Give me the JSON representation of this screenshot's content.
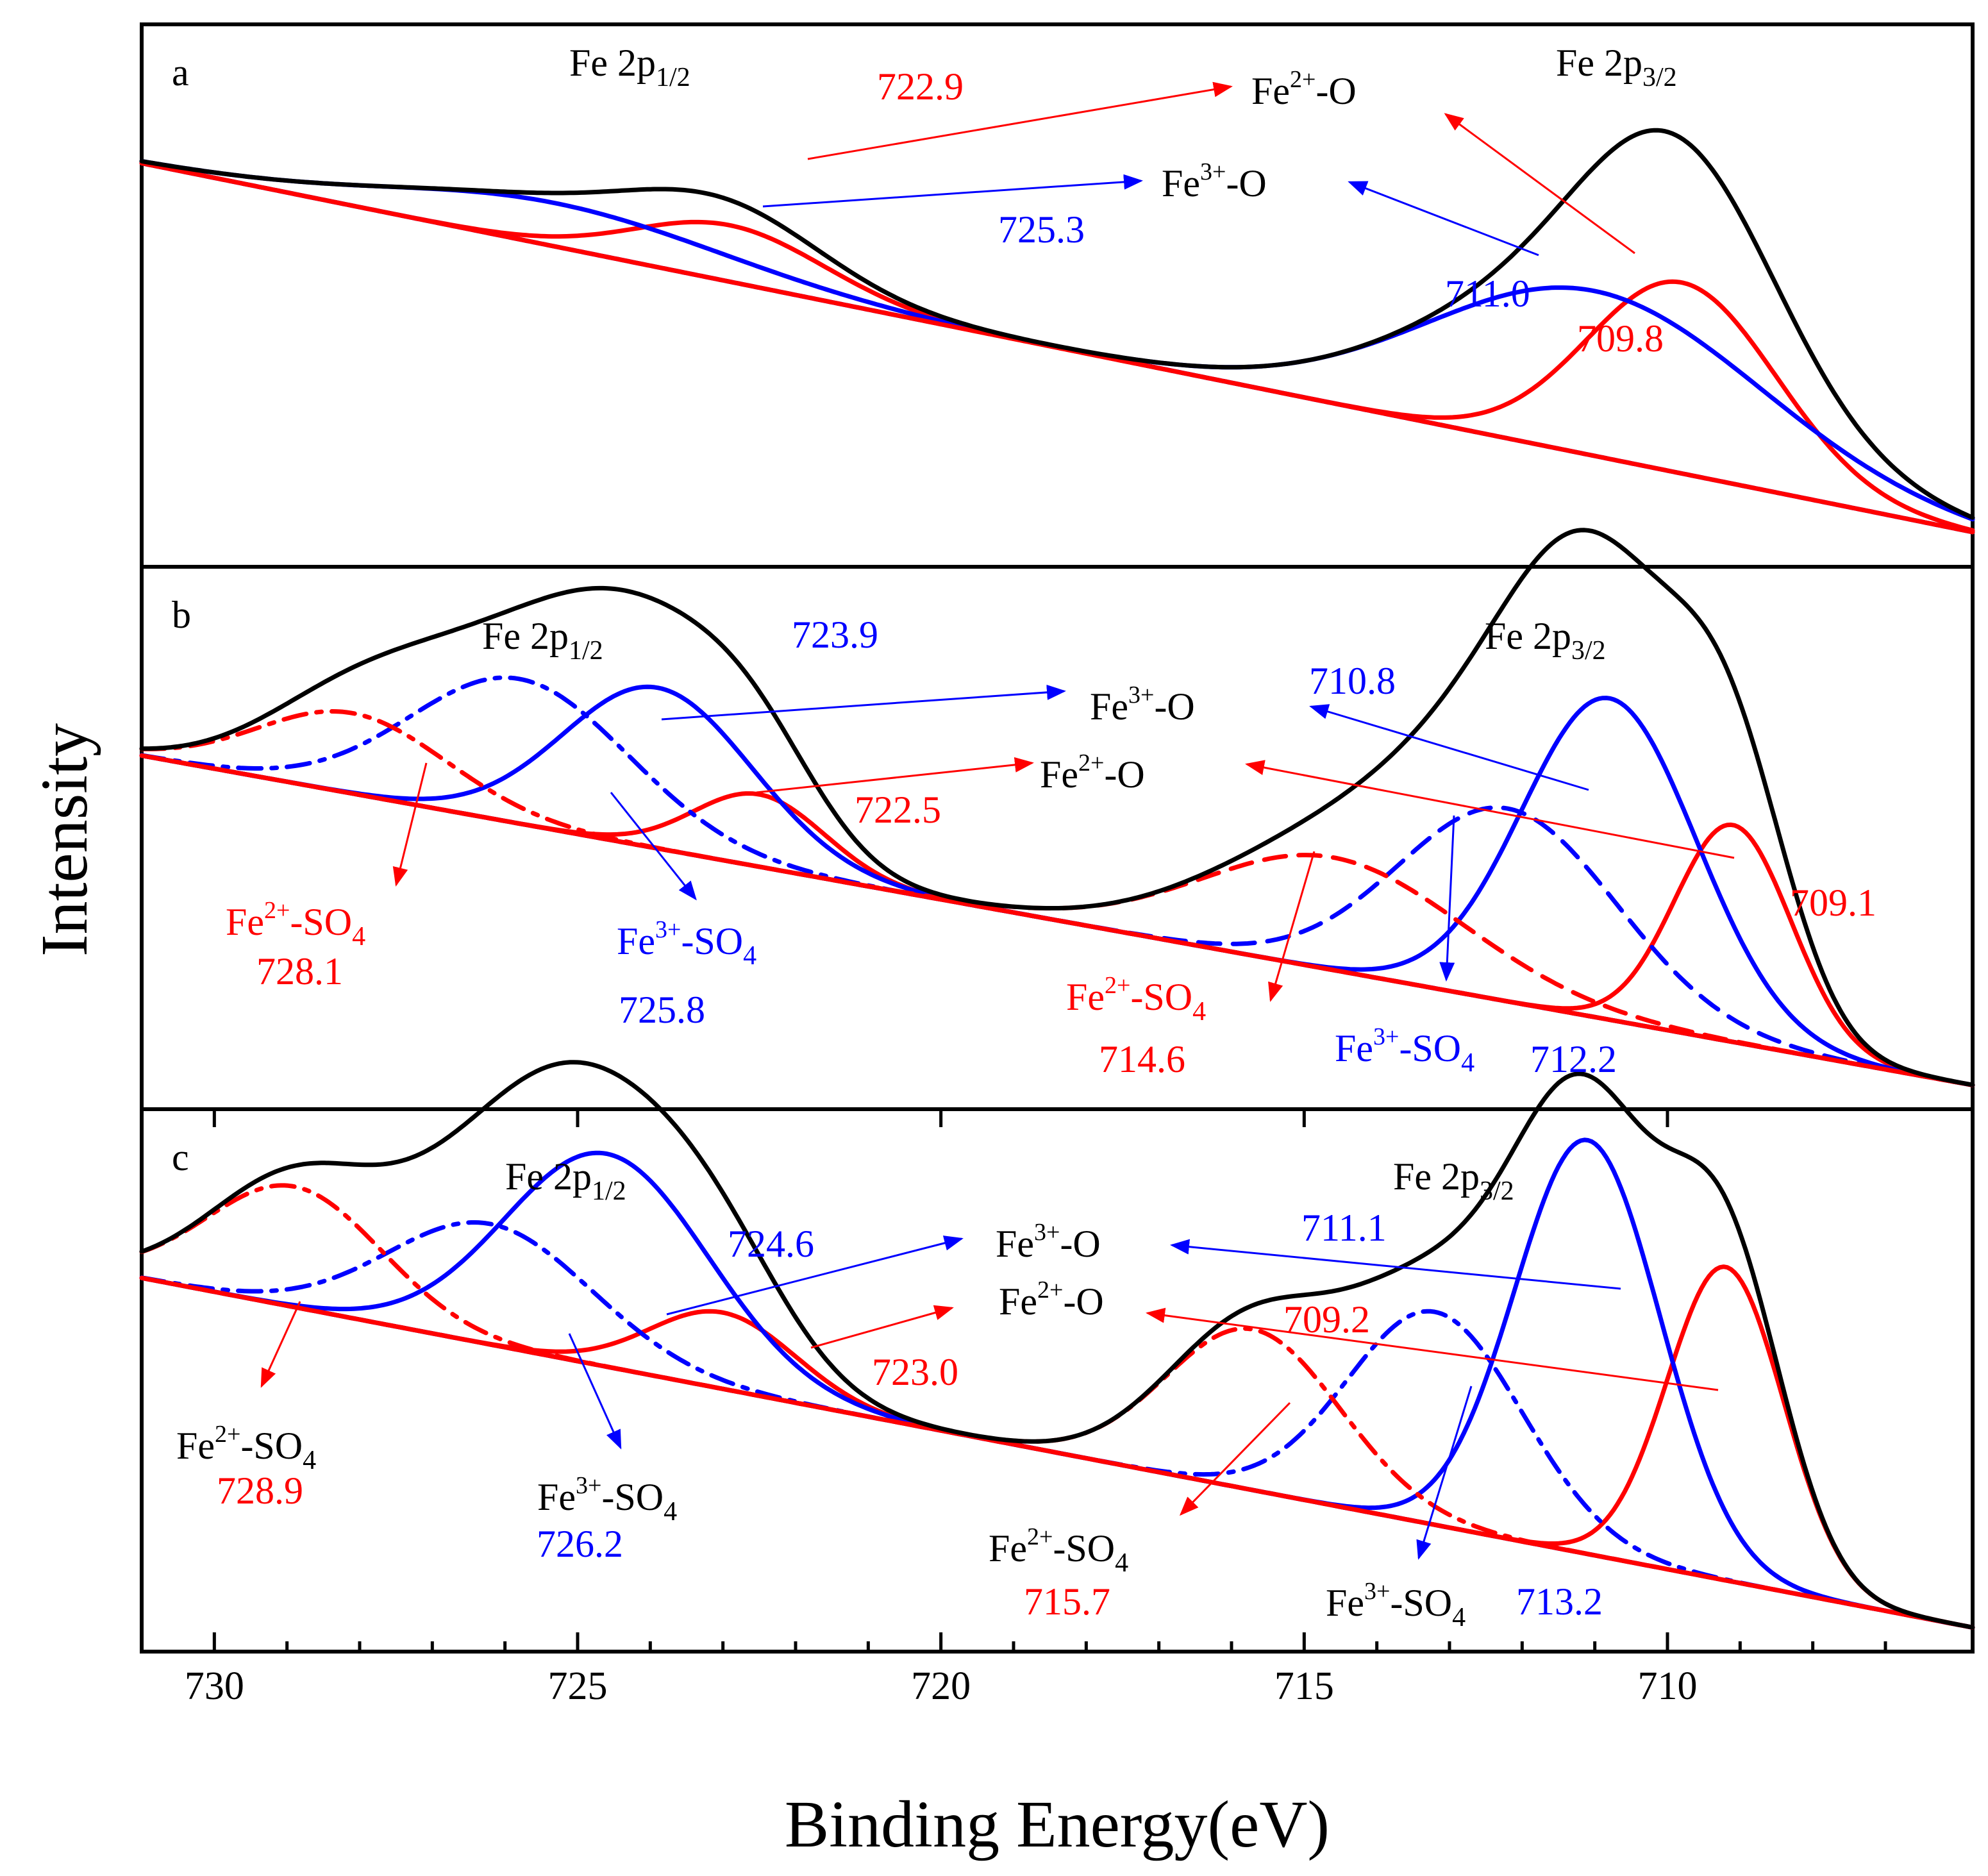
{
  "chart_data": {
    "type": "line",
    "title": "",
    "xlabel": "Binding Energy(eV)",
    "ylabel": "Intensity",
    "xlim": [
      731.0,
      705.8
    ],
    "x_reversed": true,
    "xticks": [
      730,
      725,
      720,
      715,
      710
    ],
    "xtick_labels": [
      "730",
      "725",
      "720",
      "715",
      "710"
    ],
    "colors": {
      "envelope": "#000000",
      "fe2": "#ff0000",
      "fe3": "#0000ff",
      "background": "#ff0000"
    },
    "panels": [
      {
        "letter": "a",
        "ymax": 1.25,
        "background": {
          "start": 0.93,
          "end": 0.08
        },
        "peaks": [
          {
            "center": 709.8,
            "height": 0.44,
            "width": 1.3,
            "color": "red",
            "dash": "solid",
            "species": "Fe2+-O",
            "label": "709.8"
          },
          {
            "center": 722.9,
            "height": 0.13,
            "width": 1.3,
            "color": "red",
            "dash": "solid",
            "species": "Fe2+-O",
            "label": "722.9"
          },
          {
            "center": 711.0,
            "height": 0.38,
            "width": 2.3,
            "color": "blue",
            "dash": "solid",
            "species": "Fe3+-O",
            "label": "711.0"
          },
          {
            "center": 725.3,
            "height": 0.1,
            "width": 2.3,
            "color": "blue",
            "dash": "solid",
            "species": "Fe3+-O",
            "label": "725.3"
          }
        ],
        "texts": [
          {
            "base": "Fe 2p",
            "sub": "1/2",
            "color": "black"
          },
          {
            "base": "Fe 2p",
            "sub": "3/2",
            "color": "black"
          },
          {
            "value": "722.9",
            "color": "red"
          },
          {
            "base": "Fe",
            "sup": "2+",
            "tail": "-O",
            "color": "black"
          },
          {
            "base": "Fe",
            "sup": "3+",
            "tail": "-O",
            "color": "black"
          },
          {
            "value": "725.3",
            "color": "blue"
          },
          {
            "value": "711.0",
            "color": "blue"
          },
          {
            "value": "709.8",
            "color": "red"
          }
        ]
      },
      {
        "letter": "b",
        "ymax": 1.35,
        "background": {
          "start": 0.88,
          "end": 0.06
        },
        "peaks": [
          {
            "center": 709.1,
            "height": 0.54,
            "width": 0.8,
            "color": "red",
            "dash": "solid",
            "species": "Fe2+-O",
            "label": "709.1"
          },
          {
            "center": 722.5,
            "height": 0.18,
            "width": 0.9,
            "color": "red",
            "dash": "solid",
            "species": "Fe2+-O",
            "label": "722.5"
          },
          {
            "center": 710.8,
            "height": 0.8,
            "width": 1.2,
            "color": "blue",
            "dash": "solid",
            "species": "Fe3+-O",
            "label": "710.8"
          },
          {
            "center": 723.9,
            "height": 0.4,
            "width": 1.3,
            "color": "blue",
            "dash": "solid",
            "species": "Fe3+-O",
            "label": "723.9"
          },
          {
            "center": 712.2,
            "height": 0.48,
            "width": 1.5,
            "color": "blue",
            "dash": "dash",
            "species": "Fe3+-SO4",
            "label": "712.2"
          },
          {
            "center": 725.8,
            "height": 0.36,
            "width": 1.5,
            "color": "blue",
            "dash": "dashdot",
            "species": "Fe3+-SO4",
            "label": "725.8"
          },
          {
            "center": 714.6,
            "height": 0.28,
            "width": 1.8,
            "color": "red",
            "dash": "dash",
            "species": "Fe2+-SO4",
            "label": "714.6"
          },
          {
            "center": 728.1,
            "height": 0.2,
            "width": 1.3,
            "color": "red",
            "dash": "dashdot",
            "species": "Fe2+-SO4",
            "label": "728.1"
          }
        ],
        "texts": [
          {
            "base": "Fe 2p",
            "sub": "1/2",
            "color": "black"
          },
          {
            "base": "Fe 2p",
            "sub": "3/2",
            "color": "black"
          },
          {
            "value": "723.9",
            "color": "blue"
          },
          {
            "base": "Fe",
            "sup": "3+",
            "tail": "-O",
            "color": "black"
          },
          {
            "value": "710.8",
            "color": "blue"
          },
          {
            "base": "Fe",
            "sup": "2+",
            "tail": "-O",
            "color": "black"
          },
          {
            "value": "722.5",
            "color": "red"
          },
          {
            "value": "709.1",
            "color": "red"
          },
          {
            "base": "Fe",
            "sup": "2+",
            "tail": "-SO",
            "tailsub": "4",
            "color": "red"
          },
          {
            "value": "728.1",
            "color": "red"
          },
          {
            "base": "Fe",
            "sup": "3+",
            "tail": "-SO",
            "tailsub": "4",
            "color": "blue"
          },
          {
            "value": "725.8",
            "color": "blue"
          },
          {
            "base": "Fe",
            "sup": "2+",
            "tail": "-SO",
            "tailsub": "4",
            "color": "red"
          },
          {
            "value": "714.6",
            "color": "red"
          },
          {
            "base": "Fe",
            "sup": "3+",
            "tail": "-SO",
            "tailsub": "4",
            "color": "blue"
          },
          {
            "value": "712.2",
            "color": "blue"
          }
        ]
      },
      {
        "letter": "c",
        "ymax": 1.35,
        "background": {
          "start": 0.93,
          "end": 0.06
        },
        "peaks": [
          {
            "center": 709.2,
            "height": 0.78,
            "width": 0.8,
            "color": "red",
            "dash": "solid",
            "species": "Fe2+-O",
            "label": "709.2"
          },
          {
            "center": 723.0,
            "height": 0.19,
            "width": 1.0,
            "color": "red",
            "dash": "solid",
            "species": "Fe2+-O",
            "label": "723.0"
          },
          {
            "center": 711.1,
            "height": 1.03,
            "width": 1.0,
            "color": "blue",
            "dash": "solid",
            "species": "Fe3+-O",
            "label": "711.1"
          },
          {
            "center": 724.6,
            "height": 0.53,
            "width": 1.4,
            "color": "blue",
            "dash": "solid",
            "species": "Fe3+-O",
            "label": "724.6"
          },
          {
            "center": 713.2,
            "height": 0.53,
            "width": 1.2,
            "color": "blue",
            "dash": "dashdot",
            "species": "Fe3+-SO4",
            "label": "713.2"
          },
          {
            "center": 726.2,
            "height": 0.3,
            "width": 1.4,
            "color": "blue",
            "dash": "dashdot",
            "species": "Fe3+-SO4",
            "label": "726.2"
          },
          {
            "center": 715.7,
            "height": 0.4,
            "width": 1.2,
            "color": "red",
            "dash": "dashdot",
            "species": "Fe2+-SO4",
            "label": "715.7"
          },
          {
            "center": 728.9,
            "height": 0.3,
            "width": 1.2,
            "color": "red",
            "dash": "dashdot",
            "species": "Fe2+-SO4",
            "label": "728.9"
          }
        ],
        "texts": [
          {
            "base": "Fe 2p",
            "sub": "1/2",
            "color": "black"
          },
          {
            "base": "Fe 2p",
            "sub": "3/2",
            "color": "black"
          },
          {
            "value": "724.6",
            "color": "blue"
          },
          {
            "base": "Fe",
            "sup": "3+",
            "tail": "-O",
            "color": "black"
          },
          {
            "value": "711.1",
            "color": "blue"
          },
          {
            "base": "Fe",
            "sup": "2+",
            "tail": "-O",
            "color": "black"
          },
          {
            "value": "709.2",
            "color": "red"
          },
          {
            "value": "723.0",
            "color": "red"
          },
          {
            "base": "Fe",
            "sup": "2+",
            "tail": "-SO",
            "tailsub": "4",
            "color": "black"
          },
          {
            "value": "728.9",
            "color": "red"
          },
          {
            "base": "Fe",
            "sup": "3+",
            "tail": "-SO",
            "tailsub": "4",
            "color": "black"
          },
          {
            "value": "726.2",
            "color": "blue"
          },
          {
            "base": "Fe",
            "sup": "2+",
            "tail": "-SO",
            "tailsub": "4",
            "color": "black"
          },
          {
            "value": "715.7",
            "color": "red"
          },
          {
            "base": "Fe",
            "sup": "3+",
            "tail": "-SO",
            "tailsub": "4",
            "color": "black"
          },
          {
            "value": "713.2",
            "color": "blue"
          }
        ]
      }
    ]
  }
}
